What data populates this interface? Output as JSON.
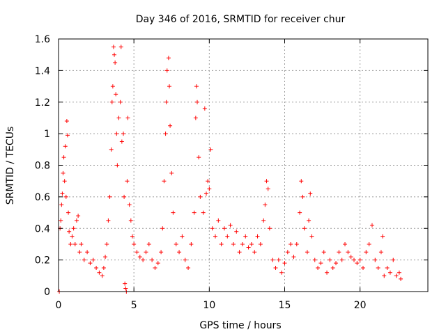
{
  "chart_data": {
    "type": "scatter",
    "title": "Day 346 of 2016, SRMTID for receiver chur",
    "xlabel": "GPS time / hours",
    "ylabel": "SRMTID / TECUs",
    "xlim": [
      0,
      24.5
    ],
    "ylim": [
      0,
      1.6
    ],
    "xticks": [
      0,
      5,
      10,
      15,
      20
    ],
    "xtick_labels": [
      "0",
      "5",
      "10",
      "15",
      "20"
    ],
    "yticks": [
      0,
      0.2,
      0.4,
      0.6,
      0.8,
      1.0,
      1.2,
      1.4,
      1.6
    ],
    "ytick_labels": [
      "0",
      "0.2",
      "0.4",
      "0.6",
      "0.8",
      "1",
      "1.2",
      "1.4",
      "1.6"
    ],
    "grid": true,
    "marker": "+",
    "color": "#ff0000",
    "series": [
      {
        "name": "SRMTID",
        "points": [
          [
            0.05,
            0.0
          ],
          [
            0.1,
            0.4
          ],
          [
            0.15,
            0.45
          ],
          [
            0.2,
            0.55
          ],
          [
            0.25,
            0.62
          ],
          [
            0.3,
            0.75
          ],
          [
            0.35,
            0.85
          ],
          [
            0.4,
            0.7
          ],
          [
            0.45,
            0.92
          ],
          [
            0.5,
            0.6
          ],
          [
            0.55,
            1.08
          ],
          [
            0.6,
            0.99
          ],
          [
            0.65,
            0.5
          ],
          [
            0.7,
            0.38
          ],
          [
            0.8,
            0.3
          ],
          [
            0.9,
            0.35
          ],
          [
            1.0,
            0.4
          ],
          [
            1.1,
            0.3
          ],
          [
            1.2,
            0.45
          ],
          [
            1.3,
            0.48
          ],
          [
            1.4,
            0.25
          ],
          [
            1.5,
            0.3
          ],
          [
            1.7,
            0.2
          ],
          [
            1.9,
            0.25
          ],
          [
            2.1,
            0.18
          ],
          [
            2.3,
            0.2
          ],
          [
            2.5,
            0.15
          ],
          [
            2.7,
            0.12
          ],
          [
            2.9,
            0.1
          ],
          [
            3.0,
            0.15
          ],
          [
            3.1,
            0.22
          ],
          [
            3.2,
            0.3
          ],
          [
            3.3,
            0.45
          ],
          [
            3.4,
            0.6
          ],
          [
            3.5,
            0.9
          ],
          [
            3.55,
            1.2
          ],
          [
            3.6,
            1.3
          ],
          [
            3.65,
            1.55
          ],
          [
            3.7,
            1.5
          ],
          [
            3.75,
            1.45
          ],
          [
            3.8,
            1.25
          ],
          [
            3.85,
            1.0
          ],
          [
            3.9,
            0.8
          ],
          [
            4.0,
            1.1
          ],
          [
            4.1,
            1.2
          ],
          [
            4.15,
            1.55
          ],
          [
            4.2,
            0.95
          ],
          [
            4.3,
            1.0
          ],
          [
            4.35,
            0.6
          ],
          [
            4.4,
            0.05
          ],
          [
            4.45,
            0.02
          ],
          [
            4.5,
            0.0
          ],
          [
            4.55,
            0.7
          ],
          [
            4.6,
            1.1
          ],
          [
            4.7,
            0.55
          ],
          [
            4.8,
            0.45
          ],
          [
            4.9,
            0.35
          ],
          [
            5.0,
            0.3
          ],
          [
            5.2,
            0.25
          ],
          [
            5.4,
            0.22
          ],
          [
            5.6,
            0.2
          ],
          [
            5.8,
            0.25
          ],
          [
            6.0,
            0.3
          ],
          [
            6.2,
            0.2
          ],
          [
            6.4,
            0.15
          ],
          [
            6.6,
            0.18
          ],
          [
            6.8,
            0.25
          ],
          [
            6.9,
            0.4
          ],
          [
            7.0,
            0.7
          ],
          [
            7.1,
            1.0
          ],
          [
            7.15,
            1.2
          ],
          [
            7.2,
            1.4
          ],
          [
            7.3,
            1.48
          ],
          [
            7.35,
            1.3
          ],
          [
            7.4,
            1.05
          ],
          [
            7.5,
            0.75
          ],
          [
            7.6,
            0.5
          ],
          [
            7.8,
            0.3
          ],
          [
            8.0,
            0.25
          ],
          [
            8.2,
            0.35
          ],
          [
            8.4,
            0.2
          ],
          [
            8.6,
            0.15
          ],
          [
            8.8,
            0.3
          ],
          [
            9.0,
            0.5
          ],
          [
            9.1,
            1.1
          ],
          [
            9.15,
            1.3
          ],
          [
            9.2,
            1.2
          ],
          [
            9.3,
            0.85
          ],
          [
            9.4,
            0.6
          ],
          [
            9.6,
            0.5
          ],
          [
            9.7,
            1.16
          ],
          [
            9.8,
            0.62
          ],
          [
            9.9,
            0.7
          ],
          [
            10.0,
            0.65
          ],
          [
            10.1,
            0.9
          ],
          [
            10.2,
            0.4
          ],
          [
            10.4,
            0.35
          ],
          [
            10.6,
            0.45
          ],
          [
            10.8,
            0.3
          ],
          [
            11.0,
            0.4
          ],
          [
            11.2,
            0.35
          ],
          [
            11.4,
            0.42
          ],
          [
            11.6,
            0.3
          ],
          [
            11.8,
            0.38
          ],
          [
            12.0,
            0.25
          ],
          [
            12.2,
            0.3
          ],
          [
            12.4,
            0.35
          ],
          [
            12.6,
            0.28
          ],
          [
            12.8,
            0.3
          ],
          [
            13.0,
            0.25
          ],
          [
            13.2,
            0.35
          ],
          [
            13.4,
            0.3
          ],
          [
            13.6,
            0.45
          ],
          [
            13.7,
            0.55
          ],
          [
            13.8,
            0.7
          ],
          [
            13.9,
            0.65
          ],
          [
            14.0,
            0.4
          ],
          [
            14.2,
            0.2
          ],
          [
            14.4,
            0.15
          ],
          [
            14.6,
            0.2
          ],
          [
            14.8,
            0.12
          ],
          [
            15.0,
            0.18
          ],
          [
            15.2,
            0.25
          ],
          [
            15.4,
            0.3
          ],
          [
            15.6,
            0.22
          ],
          [
            15.8,
            0.3
          ],
          [
            16.0,
            0.5
          ],
          [
            16.1,
            0.7
          ],
          [
            16.2,
            0.6
          ],
          [
            16.3,
            0.4
          ],
          [
            16.5,
            0.25
          ],
          [
            16.6,
            0.45
          ],
          [
            16.7,
            0.62
          ],
          [
            16.8,
            0.35
          ],
          [
            17.0,
            0.2
          ],
          [
            17.2,
            0.15
          ],
          [
            17.4,
            0.18
          ],
          [
            17.6,
            0.25
          ],
          [
            17.8,
            0.12
          ],
          [
            18.0,
            0.2
          ],
          [
            18.2,
            0.15
          ],
          [
            18.4,
            0.18
          ],
          [
            18.6,
            0.25
          ],
          [
            18.8,
            0.2
          ],
          [
            19.0,
            0.3
          ],
          [
            19.2,
            0.25
          ],
          [
            19.4,
            0.22
          ],
          [
            19.6,
            0.2
          ],
          [
            19.8,
            0.18
          ],
          [
            20.0,
            0.2
          ],
          [
            20.2,
            0.15
          ],
          [
            20.4,
            0.25
          ],
          [
            20.6,
            0.3
          ],
          [
            20.8,
            0.42
          ],
          [
            21.0,
            0.2
          ],
          [
            21.2,
            0.15
          ],
          [
            21.4,
            0.25
          ],
          [
            21.5,
            0.35
          ],
          [
            21.6,
            0.1
          ],
          [
            21.8,
            0.15
          ],
          [
            22.0,
            0.12
          ],
          [
            22.2,
            0.2
          ],
          [
            22.4,
            0.1
          ],
          [
            22.6,
            0.12
          ],
          [
            22.7,
            0.08
          ]
        ]
      }
    ]
  }
}
